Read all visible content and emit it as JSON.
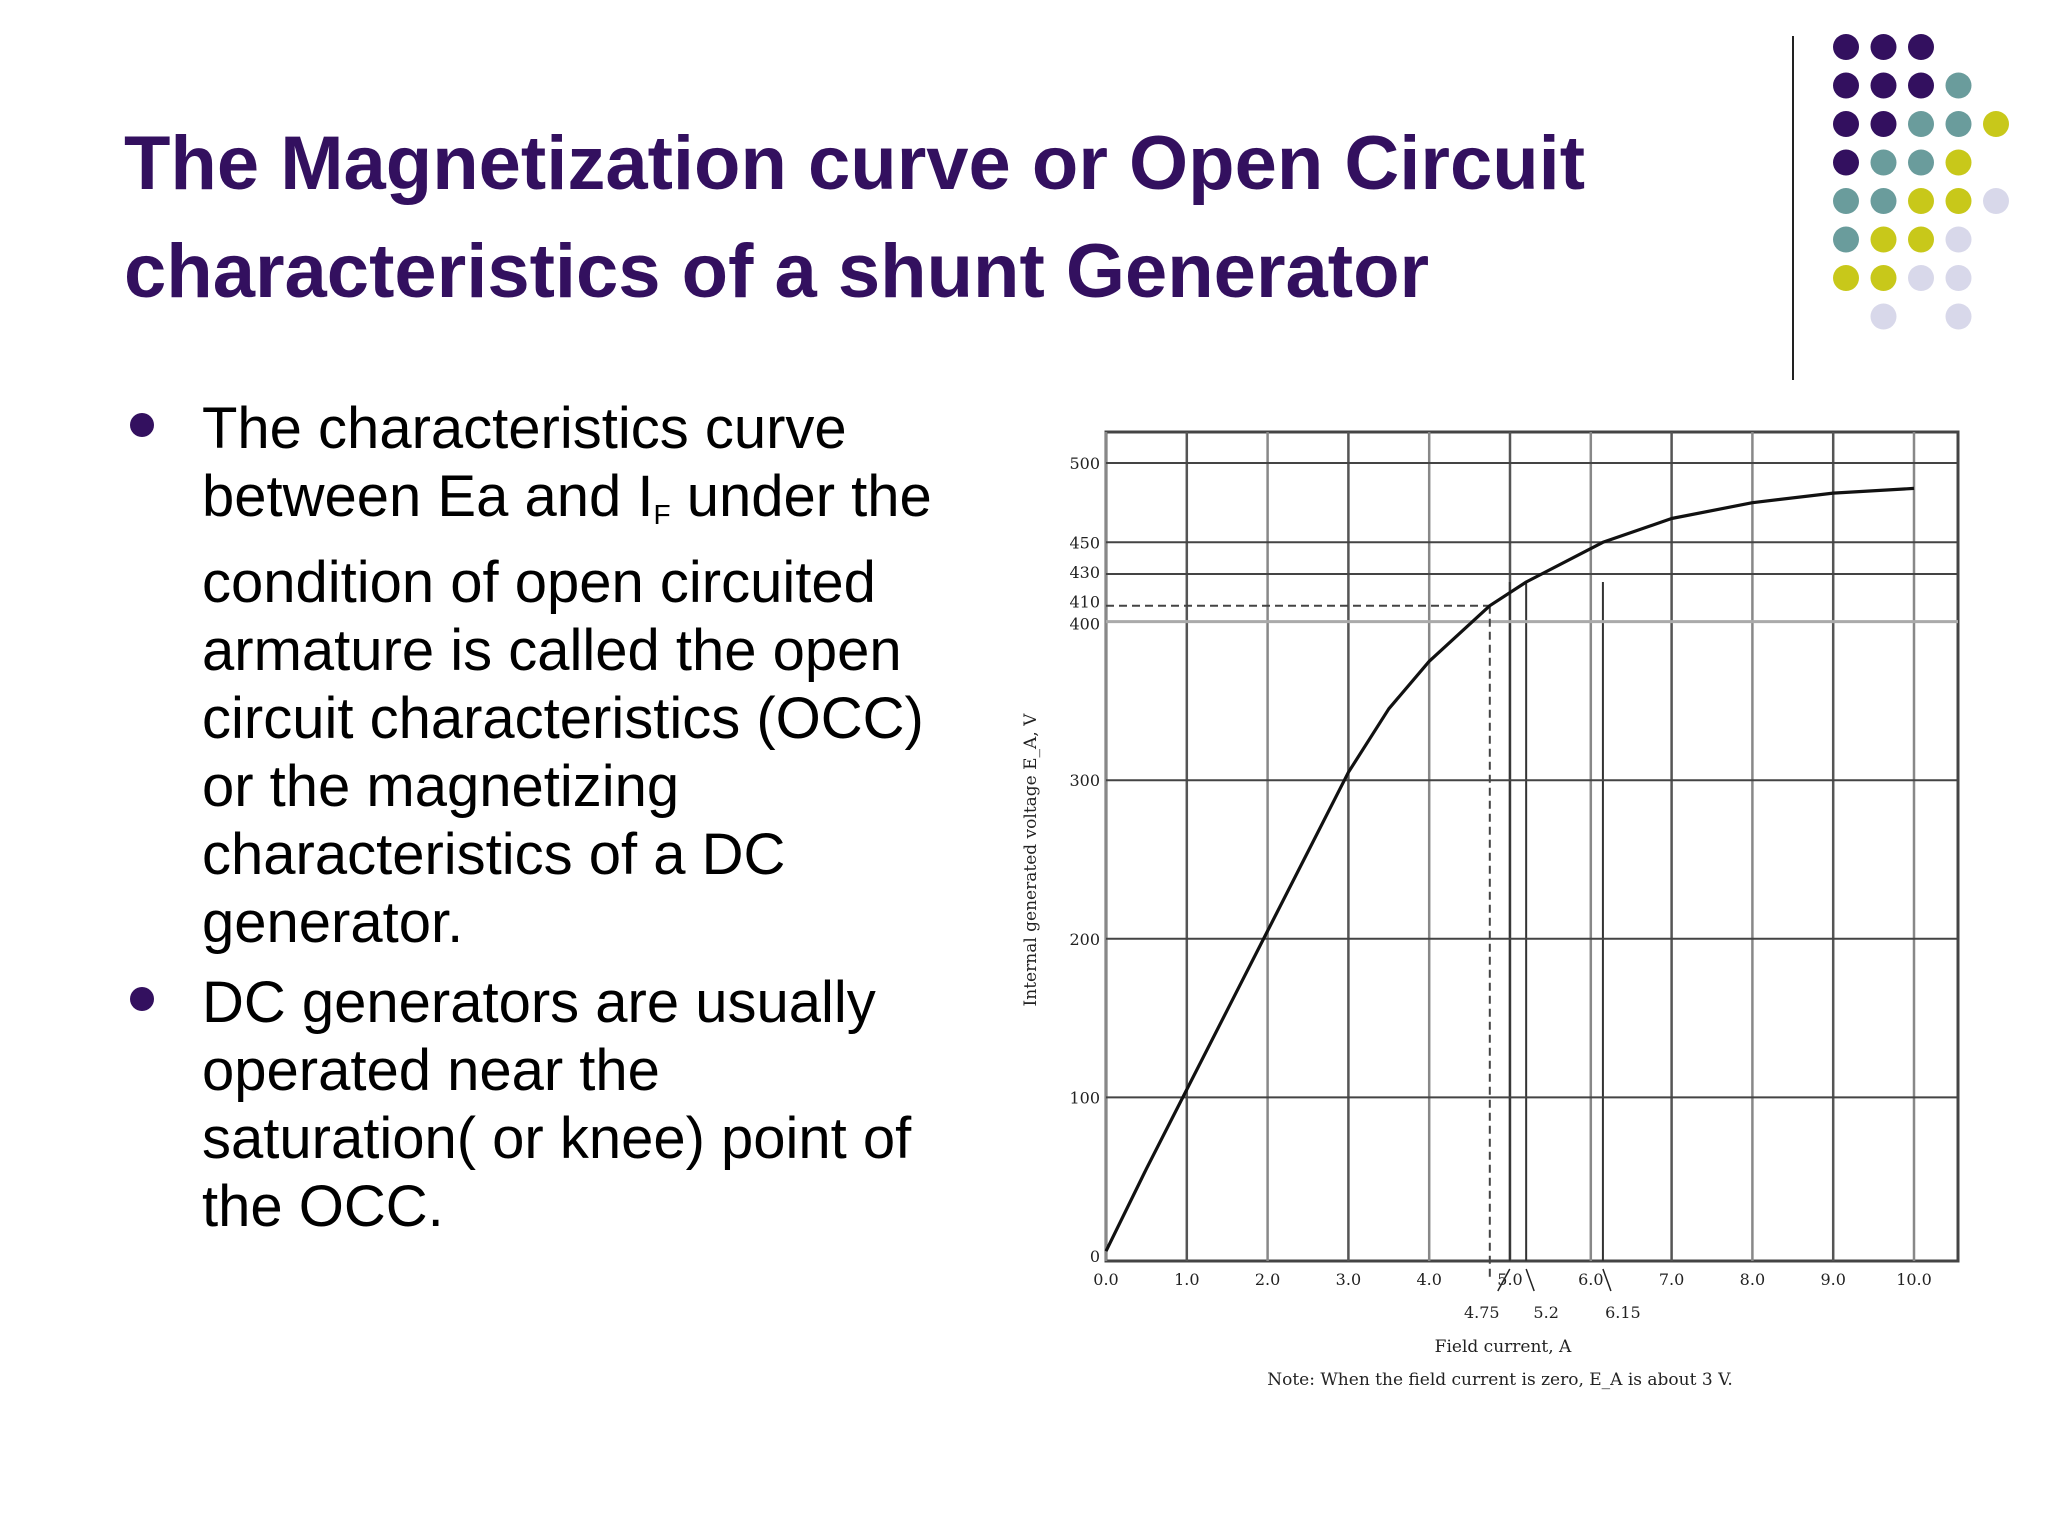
{
  "slide": {
    "title_line1": "The Magnetization curve or Open Circuit",
    "title_line2": "characteristics of a shunt Generator",
    "bullets": [
      {
        "lines": [
          "The characteristics curve",
          "between Ea and I",
          "condition of open circuited",
          "armature is called the open",
          "circuit characteristics (OCC)",
          "or the magnetizing",
          "characteristics of a DC",
          "generator."
        ],
        "subscript": "F",
        "line2_after": " under the"
      },
      {
        "lines": [
          "DC generators are usually",
          "operated near the",
          "saturation( or knee) point of",
          "the OCC."
        ]
      }
    ]
  },
  "colors": {
    "title": "#33105f",
    "dot_purple": "#33105f",
    "dot_teal": "#6a9c9c",
    "dot_yellow": "#c8c81a",
    "dot_lavender": "#d8d8ea"
  },
  "chart_data": {
    "type": "line",
    "xlabel": "Field current, A",
    "ylabel": "Internal generated voltage E_A, V",
    "note": "Note: When the field current is zero, E_A is about 3 V.",
    "xlim": [
      0,
      10.5
    ],
    "ylim": [
      0,
      525
    ],
    "x_ticks": [
      0,
      1,
      2,
      3,
      4,
      5,
      6,
      7,
      8,
      9,
      10
    ],
    "x_tick_labels": [
      "0.0",
      "1.0",
      "2.0",
      "3.0",
      "4.0",
      "5.0",
      "6.0",
      "7.0",
      "8.0",
      "9.0",
      "10.0"
    ],
    "y_ticks": [
      0,
      100,
      200,
      300,
      400,
      410,
      430,
      450,
      500
    ],
    "y_tick_labels": [
      "0",
      "100",
      "200",
      "300",
      "400",
      "410",
      "430",
      "450",
      "500"
    ],
    "x_annotations": [
      {
        "x": 4.75,
        "label": "4.75"
      },
      {
        "x": 5.2,
        "label": "5.2"
      },
      {
        "x": 6.15,
        "label": "6.15"
      }
    ],
    "reference_lines": {
      "dashed": {
        "x": 4.75,
        "y": 410
      }
    },
    "grid": true,
    "series": [
      {
        "x": [
          0,
          0.5,
          1.0,
          1.5,
          2.0,
          2.5,
          3.0,
          3.5,
          4.0,
          4.75,
          5.2,
          6.15,
          7.0,
          8.0,
          9.0,
          10.0
        ],
        "values": [
          3,
          55,
          105,
          155,
          205,
          255,
          305,
          345,
          375,
          410,
          425,
          450,
          465,
          475,
          481,
          484
        ]
      }
    ]
  }
}
